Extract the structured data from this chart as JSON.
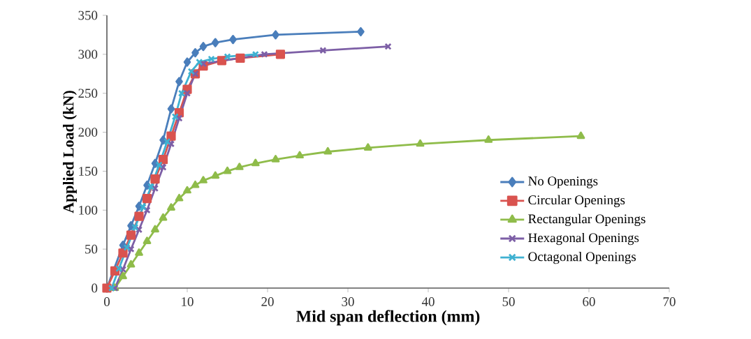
{
  "chart_data": {
    "type": "line",
    "xlabel": "Mid span deflection (mm)",
    "ylabel": "Applied Load (kN)",
    "xlim": [
      0,
      70
    ],
    "ylim": [
      0,
      350
    ],
    "xticks": [
      0,
      10,
      20,
      30,
      40,
      50,
      60,
      70
    ],
    "yticks": [
      0,
      50,
      100,
      150,
      200,
      250,
      300,
      350
    ],
    "legend": "bottom right",
    "grid": false,
    "line_style": "solid",
    "series": [
      {
        "name": "No Openings",
        "color": "#4a7ebb",
        "marker": "diamond",
        "x": [
          0,
          1,
          2,
          3,
          4,
          5,
          6,
          7,
          8,
          9,
          10,
          11,
          12,
          13.5,
          15.7,
          21,
          31.6
        ],
        "values": [
          0,
          null,
          55,
          80,
          105,
          132,
          160,
          190,
          230,
          265,
          290,
          302,
          310,
          315,
          319,
          325,
          329
        ]
      },
      {
        "name": "Circular Openings",
        "color": "#d9534f",
        "marker": "square",
        "x": [
          0,
          1,
          2,
          3,
          4,
          5,
          6,
          7,
          8,
          9,
          10,
          11,
          12,
          14.3,
          16.6,
          21.6
        ],
        "values": [
          0,
          22,
          45,
          68,
          92,
          115,
          140,
          165,
          195,
          225,
          255,
          275,
          285,
          292,
          295,
          300
        ]
      },
      {
        "name": "Rectangular Openings",
        "color": "#8fbc4a",
        "marker": "triangle",
        "x": [
          1,
          2,
          3,
          4,
          5,
          6,
          7,
          8,
          9,
          10,
          11,
          12,
          13.5,
          15,
          16.5,
          18.5,
          21,
          24,
          27.5,
          32.5,
          39,
          47.5,
          59
        ],
        "values": [
          0,
          15,
          30,
          45,
          60,
          75,
          90,
          103,
          115,
          125,
          132,
          138,
          144,
          150,
          155,
          160,
          165,
          170,
          175,
          180,
          185,
          190,
          195
        ]
      },
      {
        "name": "Hexagonal Openings",
        "color": "#7d5fa6",
        "marker": "cross",
        "x": [
          1,
          2,
          3,
          4,
          5,
          6,
          7,
          8,
          9,
          10,
          11,
          12,
          13,
          19.6,
          26.9,
          35
        ],
        "values": [
          0,
          24,
          50,
          75,
          100,
          128,
          155,
          185,
          218,
          250,
          275,
          288,
          null,
          300,
          305,
          310
        ]
      },
      {
        "name": "Octagonal Openings",
        "color": "#3fb1d1",
        "marker": "cross",
        "x": [
          0.6,
          1.5,
          2.5,
          3.5,
          4.5,
          5.5,
          6.5,
          7.5,
          8.5,
          9.3,
          10.5,
          11.5,
          13,
          15,
          18.5
        ],
        "values": [
          0,
          25,
          52,
          78,
          104,
          130,
          158,
          188,
          220,
          250,
          278,
          290,
          294,
          297,
          300
        ]
      }
    ]
  }
}
